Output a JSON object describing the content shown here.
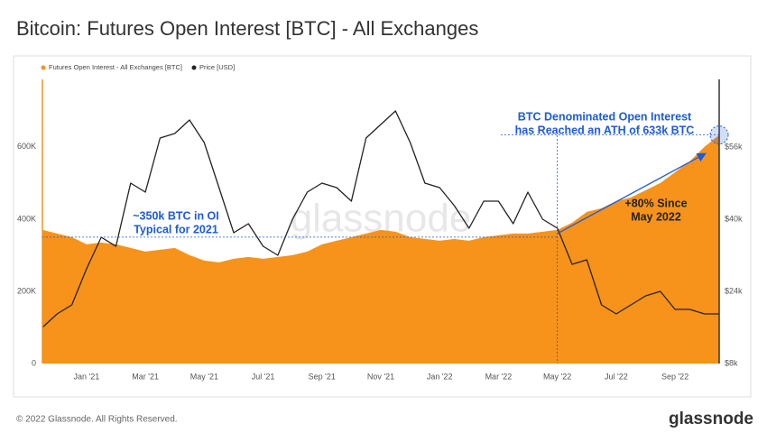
{
  "chart_data": {
    "type": "line",
    "title": "Bitcoin: Futures Open Interest [BTC] - All Exchanges",
    "categories": [
      null,
      null,
      null,
      "Jan '21",
      null,
      null,
      null,
      "Mar '21",
      null,
      null,
      null,
      "May '21",
      null,
      null,
      null,
      "Jul '21",
      null,
      null,
      null,
      "Sep '21",
      null,
      null,
      null,
      "Nov '21",
      null,
      null,
      null,
      "Jan '22",
      null,
      null,
      null,
      "Mar '22",
      null,
      null,
      null,
      "May '22",
      null,
      null,
      null,
      "Jul '22",
      null,
      null,
      null,
      "Sep '22",
      null,
      null,
      null
    ],
    "series": [
      {
        "name": "Futures Open Interest - All Exchanges [BTC]",
        "color": "#f7931a",
        "fill": true,
        "values": [
          370000,
          360000,
          350000,
          330000,
          335000,
          330000,
          320000,
          310000,
          315000,
          320000,
          300000,
          285000,
          280000,
          290000,
          295000,
          290000,
          295000,
          300000,
          310000,
          330000,
          340000,
          350000,
          360000,
          370000,
          365000,
          350000,
          345000,
          340000,
          345000,
          340000,
          350000,
          355000,
          360000,
          360000,
          365000,
          370000,
          390000,
          420000,
          430000,
          450000,
          460000,
          480000,
          500000,
          530000,
          560000,
          600000,
          633000
        ]
      },
      {
        "name": "Price [USD]",
        "color": "#222222",
        "fill": false,
        "axis": "y2",
        "values": [
          16000,
          19000,
          21000,
          29000,
          36000,
          34000,
          48000,
          46000,
          58000,
          59000,
          62000,
          57000,
          47000,
          37000,
          39000,
          34000,
          32000,
          40000,
          46000,
          48000,
          47000,
          44000,
          58000,
          61000,
          64000,
          57000,
          48000,
          47000,
          43000,
          38000,
          44000,
          44000,
          39000,
          46000,
          40000,
          38000,
          30000,
          31000,
          21000,
          19000,
          21000,
          23000,
          24000,
          20000,
          20000,
          19000,
          19000
        ]
      }
    ],
    "ylim": [
      0,
      787000
    ],
    "yticks": [
      0,
      {
        "value": 200000,
        "label": "200K"
      },
      {
        "value": 400000,
        "label": "400K"
      },
      {
        "value": 600000,
        "label": "600K"
      }
    ],
    "y2lim": [
      8000,
      71000
    ],
    "y2ticks": [
      {
        "value": 8000,
        "label": "$8k"
      },
      {
        "value": 24000,
        "label": "$24k"
      },
      {
        "value": 40000,
        "label": "$40k"
      },
      {
        "value": 56000,
        "label": "$56k"
      }
    ],
    "reference_line": 350000,
    "annotations": [
      {
        "lines": [
          "BTC Denominated Open Interest",
          "has Reached an ATH of 633k BTC"
        ]
      },
      {
        "lines": [
          "+80% Since",
          "May 2022"
        ]
      },
      {
        "lines": [
          "~350k BTC in OI",
          "Typical for 2021"
        ]
      }
    ],
    "watermark": "glassnode",
    "footer": "© 2022 Glassnode. All Rights Reserved.",
    "logo": "glassnode"
  }
}
